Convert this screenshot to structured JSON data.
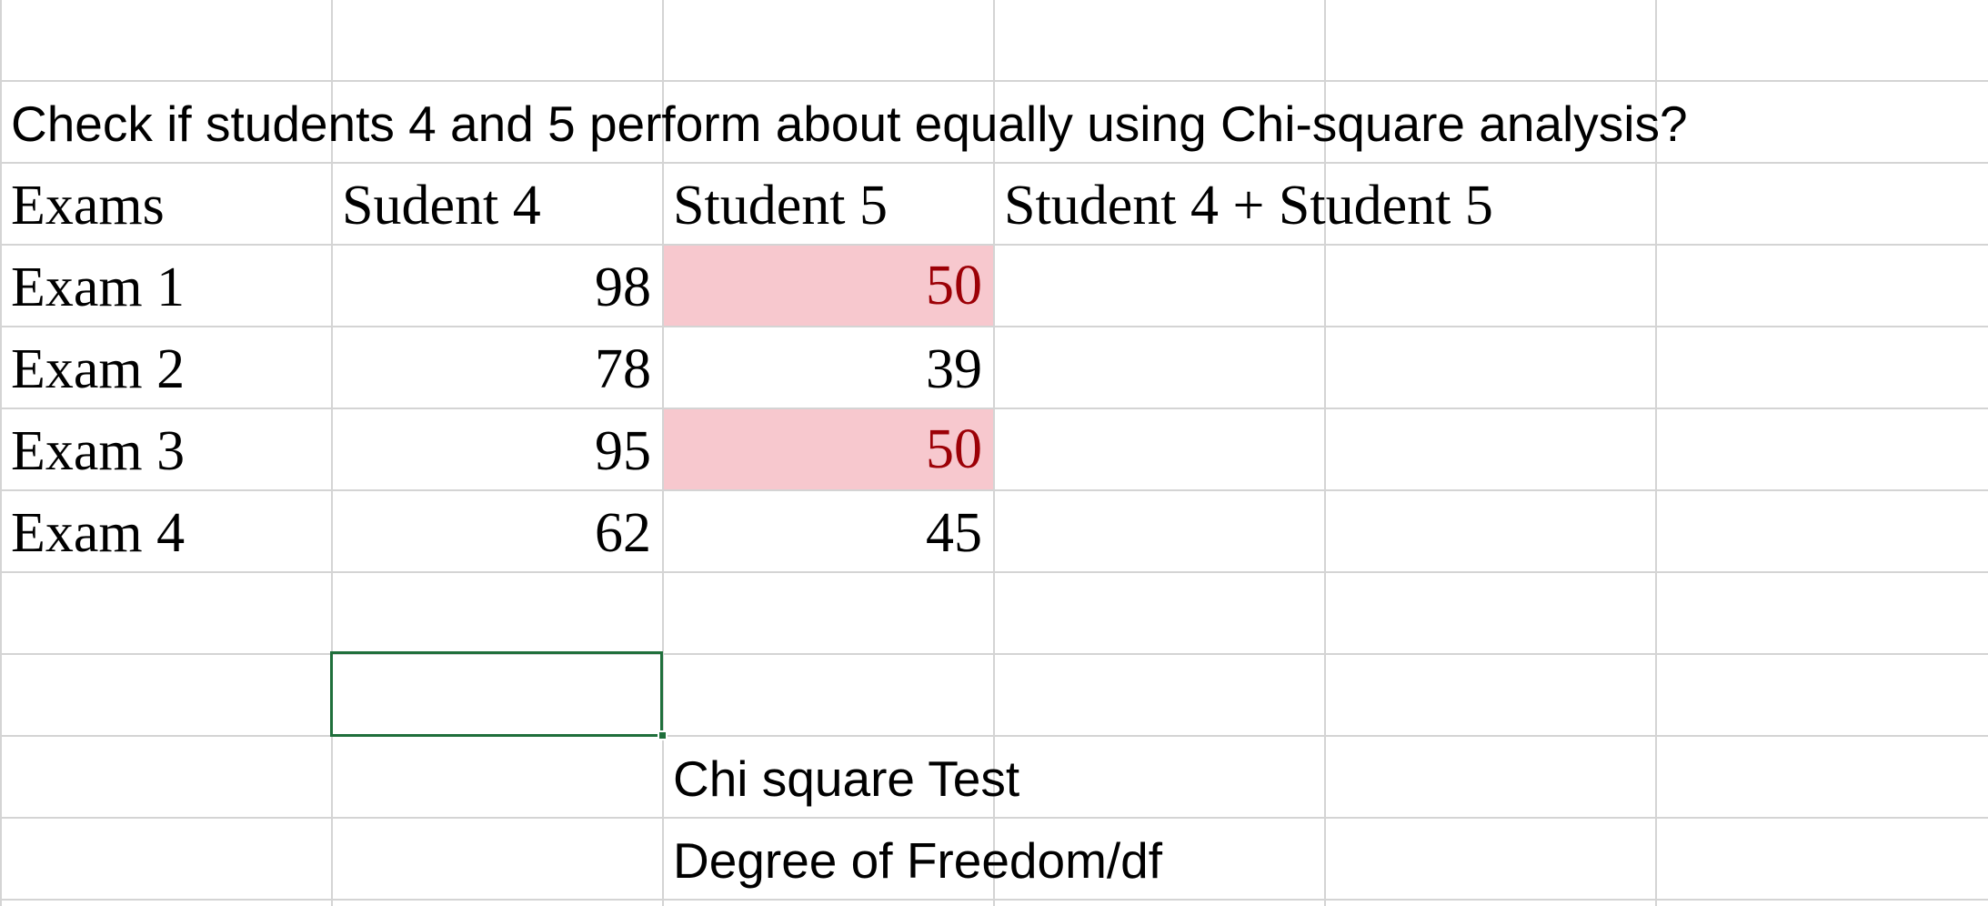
{
  "question": "Check if students 4 and 5 perform about equally using Chi-square analysis?",
  "table": {
    "headers": [
      "Exams",
      "Sudent 4",
      "Student 5",
      "Student 4 + Student 5"
    ],
    "rows": [
      {
        "exam": "Exam 1",
        "s4": "98",
        "s5": "50",
        "highlight": true
      },
      {
        "exam": "Exam 2",
        "s4": "78",
        "s5": "39",
        "highlight": false
      },
      {
        "exam": "Exam 3",
        "s4": "95",
        "s5": "50",
        "highlight": true
      },
      {
        "exam": "Exam 4",
        "s4": "62",
        "s5": "45",
        "highlight": false
      }
    ]
  },
  "labels": {
    "chi_square_test": "Chi square Test",
    "degree_of_freedom": "Degree of Freedom/df"
  },
  "colors": {
    "highlight_fill": "#f7c8ce",
    "highlight_text": "#9c0006",
    "selection_border": "#1f6f3b",
    "gridline": "#d4d4d4"
  }
}
